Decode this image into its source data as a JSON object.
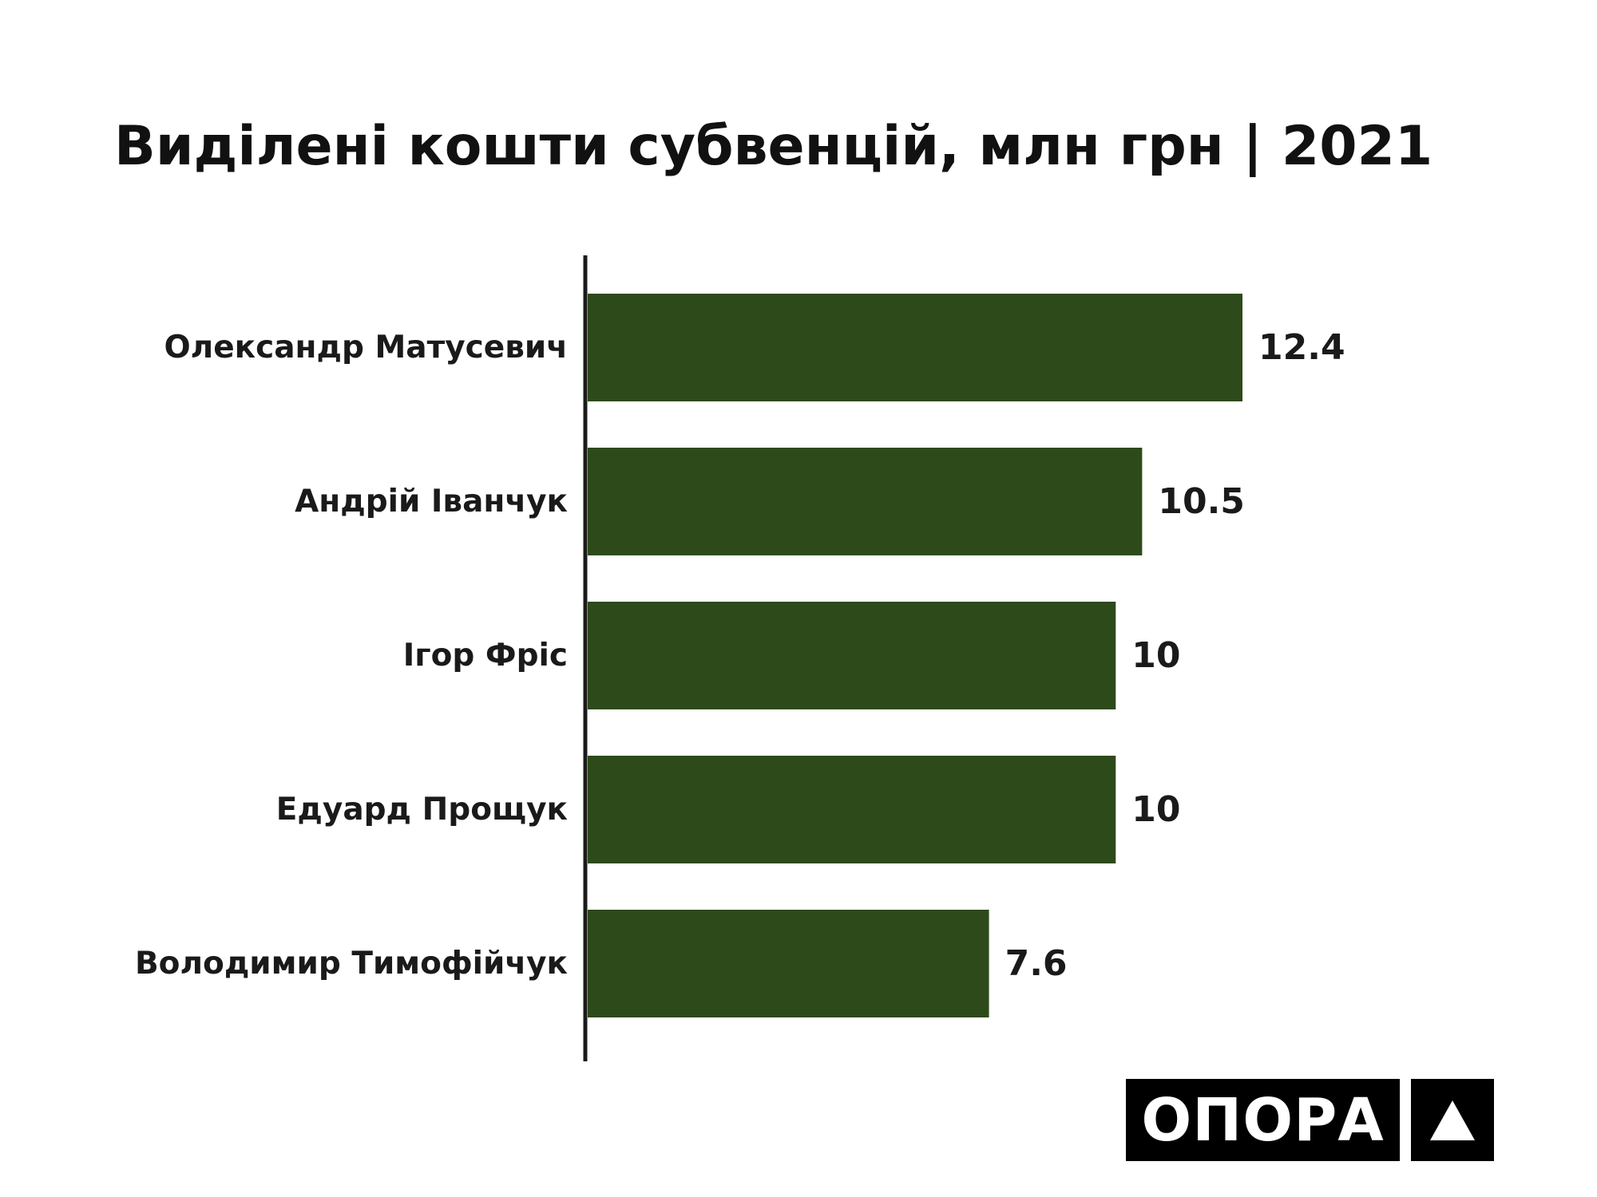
{
  "chart_data": {
    "type": "bar",
    "orientation": "horizontal",
    "title": "Виділені кошти субвенцій, млн грн | 2021",
    "categories": [
      "Олександр Матусевич",
      "Андрій Іванчук",
      "Ігор Фріс",
      "Едуард Прощук",
      "Володимир Тимофійчук"
    ],
    "values": [
      12.4,
      10.5,
      10,
      10,
      7.6
    ],
    "value_labels": [
      "12.4",
      "10.5",
      "10",
      "10",
      "7.6"
    ],
    "xlim": [
      0,
      12.4
    ],
    "grid": false,
    "bar_color": "#2d4a1b",
    "axis_color": "#1a1a1a"
  },
  "logo": {
    "text": "ОПОРА",
    "mark": "triangle-icon"
  }
}
